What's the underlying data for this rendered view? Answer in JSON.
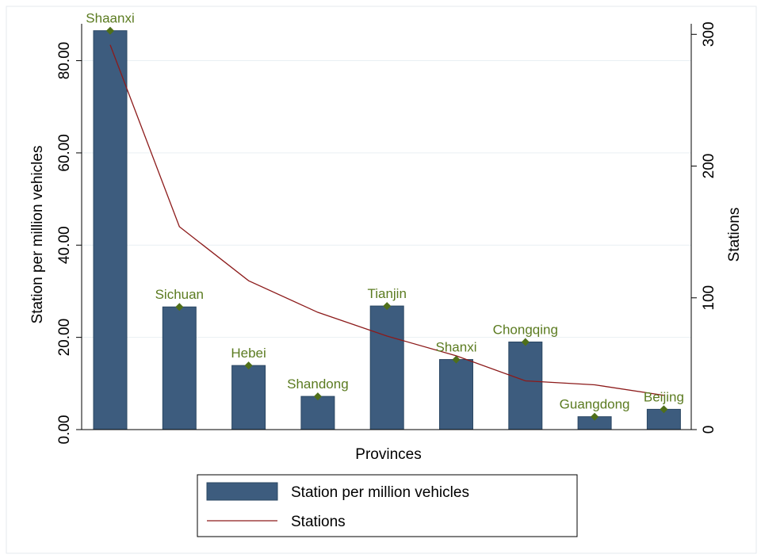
{
  "colors": {
    "background": "#ffffff",
    "outer_border": "#e4eaee",
    "bar_fill": "#3d5c7e",
    "bar_stroke": "#2b4763",
    "line": "#8c1a1a",
    "marker": "#4f6f1a",
    "label_text": "#5b7b20",
    "grid": "#e9eff3",
    "axis": "#000000"
  },
  "chart_data": {
    "type": "bar",
    "categories": [
      "Shaanxi",
      "Sichuan",
      "Hebei",
      "Shandong",
      "Tianjin",
      "Shanxi",
      "Chongqing",
      "Guangdong",
      "Beijing"
    ],
    "series": [
      {
        "name": "Station per million vehicles",
        "type": "bar",
        "axis": "left",
        "values": [
          86.5,
          26.6,
          13.9,
          7.2,
          26.8,
          15.2,
          19.0,
          2.8,
          4.4
        ]
      },
      {
        "name": "Stations",
        "type": "line",
        "axis": "right",
        "values": [
          292,
          154,
          113,
          89,
          71,
          56,
          37,
          34,
          26
        ]
      }
    ],
    "xlabel": "Provinces",
    "ylabel": "Station per million vehicles",
    "y2label": "Stations",
    "ylim": [
      0,
      88
    ],
    "y2lim": [
      0,
      308
    ],
    "yticks": [
      "0.00",
      "20.00",
      "40.00",
      "60.00",
      "80.00"
    ],
    "y2ticks": [
      "0",
      "100",
      "200",
      "300"
    ],
    "grid": true,
    "legend": {
      "position": "bottom-center",
      "items": [
        "Station per million vehicles",
        "Stations"
      ]
    }
  }
}
